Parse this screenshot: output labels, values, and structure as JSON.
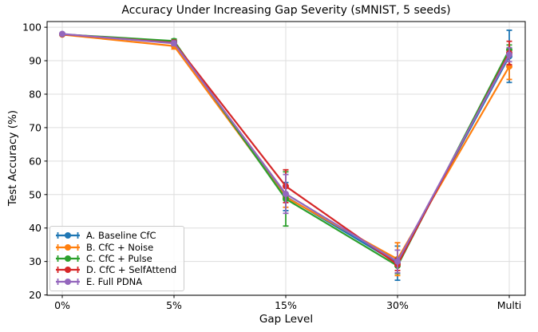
{
  "chart_data": {
    "type": "line",
    "title": "Accuracy Under Increasing Gap Severity (sMNIST, 5 seeds)",
    "xlabel": "Gap Level",
    "ylabel": "Test Accuracy (%)",
    "categories": [
      "0%",
      "5%",
      "15%",
      "30%",
      "Multi"
    ],
    "yticks": [
      20,
      30,
      40,
      50,
      60,
      70,
      80,
      90,
      100
    ],
    "ylim": [
      19.9,
      101.7
    ],
    "grid": true,
    "legend_position": "lower left",
    "marker_style": "circle-with-error-bars",
    "series": [
      {
        "name": "A. Baseline CfC",
        "color": "#1f77b4",
        "values": [
          97.9,
          95.6,
          49.4,
          29.5,
          91.3
        ],
        "errors": [
          0.3,
          0.7,
          4.2,
          5.1,
          7.8
        ]
      },
      {
        "name": "B. CfC + Noise",
        "color": "#ff7f0e",
        "values": [
          97.8,
          94.4,
          49.2,
          30.7,
          88.3
        ],
        "errors": [
          0.3,
          0.9,
          3.0,
          4.9,
          3.9
        ]
      },
      {
        "name": "C. CfC + Pulse",
        "color": "#2ca02c",
        "values": [
          97.9,
          95.9,
          48.7,
          28.7,
          93.3
        ],
        "errors": [
          0.3,
          0.6,
          8.1,
          2.3,
          1.4
        ]
      },
      {
        "name": "D. CfC + SelfAttend",
        "color": "#d62728",
        "values": [
          97.9,
          95.4,
          52.5,
          29.1,
          92.3
        ],
        "errors": [
          0.3,
          0.7,
          4.9,
          1.8,
          3.5
        ]
      },
      {
        "name": "E. Full PDNA",
        "color": "#9467bd",
        "values": [
          98.0,
          95.2,
          50.2,
          30.0,
          91.8
        ],
        "errors": [
          0.3,
          0.7,
          5.8,
          3.4,
          2.1
        ]
      }
    ]
  },
  "colors": {
    "background": "#ffffff",
    "grid": "#dddddd",
    "spine": "#000000",
    "text": "#000000"
  }
}
